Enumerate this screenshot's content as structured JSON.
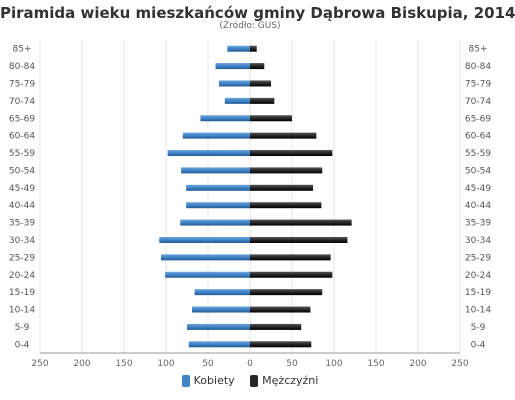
{
  "title": "Piramida wieku mieszkańców gminy Dąbrowa Biskupia, 2014",
  "subtitle": "(Źródło: GUS)",
  "colors": {
    "female": "#3f82c4",
    "male": "#262626",
    "grid": "#e4e4e4",
    "axis": "#999999"
  },
  "chart_data": {
    "type": "bar",
    "orientation": "horizontal-pyramid",
    "categories": [
      "85+",
      "80-84",
      "75-79",
      "70-74",
      "65-69",
      "60-64",
      "55-59",
      "50-54",
      "45-49",
      "40-44",
      "35-39",
      "30-34",
      "25-29",
      "20-24",
      "15-19",
      "10-14",
      "5-9",
      "0-4"
    ],
    "series": [
      {
        "name": "Kobiety",
        "values": [
          27,
          41,
          37,
          30,
          59,
          80,
          98,
          82,
          76,
          76,
          83,
          108,
          106,
          101,
          66,
          69,
          75,
          73
        ]
      },
      {
        "name": "Mężczyźni",
        "values": [
          8,
          17,
          25,
          29,
          50,
          79,
          98,
          86,
          75,
          85,
          121,
          116,
          96,
          98,
          86,
          72,
          61,
          73
        ]
      }
    ],
    "xlim": [
      -250,
      250
    ],
    "xticks": [
      "250",
      "200",
      "150",
      "100",
      "50",
      "0",
      "50",
      "100",
      "150",
      "200",
      "250"
    ],
    "grid": true,
    "legend": "bottom"
  }
}
